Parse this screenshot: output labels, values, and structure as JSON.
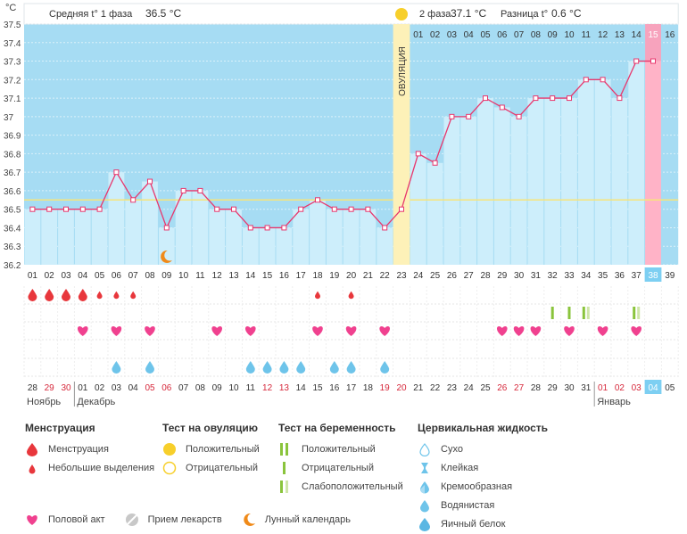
{
  "chart_data": {
    "type": "line",
    "unit_label": "°C",
    "ylim": [
      36.2,
      37.5
    ],
    "yticks": [
      "37.5",
      "37.4",
      "37.3",
      "37.2",
      "37.1",
      "37",
      "36.9",
      "36.8",
      "36.7",
      "36.6",
      "36.5",
      "36.4",
      "36.3",
      "36.2"
    ],
    "header": {
      "phase1_label": "Средняя t° 1 фаза",
      "phase1_value": "36.5 °C",
      "phase2_label": "2 фаза",
      "phase2_value": "37.1 °C",
      "diff_label": "Разница t°",
      "diff_value": "0.6 °C"
    },
    "ovulation_label": "ОВУЛЯЦИЯ",
    "ovulation_day": 23,
    "phase2_days": [
      "01",
      "02",
      "03",
      "04",
      "05",
      "06",
      "07",
      "08",
      "09",
      "10",
      "11",
      "12",
      "13",
      "14",
      "15",
      "16"
    ],
    "cycle_days": [
      "01",
      "02",
      "03",
      "04",
      "05",
      "06",
      "07",
      "08",
      "09",
      "10",
      "11",
      "12",
      "13",
      "14",
      "15",
      "16",
      "17",
      "18",
      "19",
      "20",
      "21",
      "22",
      "23",
      "24",
      "25",
      "26",
      "27",
      "28",
      "29",
      "30",
      "31",
      "32",
      "33",
      "34",
      "35",
      "36",
      "37",
      "38",
      "39"
    ],
    "today_day": 38,
    "temperatures": [
      36.5,
      36.5,
      36.5,
      36.5,
      36.5,
      36.7,
      36.55,
      36.65,
      36.4,
      36.6,
      36.6,
      36.5,
      36.5,
      36.4,
      36.4,
      36.4,
      36.5,
      36.55,
      36.5,
      36.5,
      36.5,
      36.4,
      36.5,
      36.8,
      36.75,
      37.0,
      37.0,
      37.1,
      37.05,
      37.0,
      37.1,
      37.1,
      37.1,
      37.2,
      37.2,
      37.1,
      37.3,
      37.3,
      null
    ],
    "coverline": 36.55,
    "dates": [
      "28",
      "29",
      "30",
      "01",
      "02",
      "03",
      "04",
      "05",
      "06",
      "07",
      "08",
      "09",
      "10",
      "11",
      "12",
      "13",
      "14",
      "15",
      "16",
      "17",
      "18",
      "19",
      "20",
      "21",
      "22",
      "23",
      "24",
      "25",
      "26",
      "27",
      "28",
      "29",
      "30",
      "31",
      "01",
      "02",
      "03",
      "04",
      "05"
    ],
    "red_dates": [
      2,
      3,
      8,
      9,
      15,
      16,
      22,
      23,
      29,
      30,
      35,
      36,
      37
    ],
    "highlight_date": 38,
    "month_labels": [
      "Ноябрь",
      "Декабрь",
      "Январь"
    ],
    "menstruation": {
      "1": "big",
      "2": "big",
      "3": "big",
      "4": "big",
      "5": "small",
      "6": "small",
      "7": "small",
      "18": "small",
      "20": "small"
    },
    "pregnancy_tests": {
      "32": "positive",
      "33": "positive",
      "34": "positive_weak",
      "37": "positive_weak"
    },
    "intercourse": [
      4,
      6,
      8,
      12,
      14,
      18,
      20,
      22,
      29,
      30,
      31,
      33,
      35,
      37
    ],
    "cervical_fluid": [
      6,
      8,
      14,
      15,
      16,
      17,
      19,
      20,
      22
    ],
    "moon_day": 9,
    "colors": {
      "bar": "#cdeefb",
      "plot_bg": "#a6dcf3",
      "ovulation": "#fdf1b8",
      "line": "#e8376d",
      "today": "#ffb3c7",
      "today_box": "#7dcff2",
      "blue_drop": "#6ec4ea",
      "pink": "#f0418f",
      "red": "#e8373c",
      "green": "#8ac43c",
      "moon": "#f08a19"
    }
  },
  "legend": {
    "menstruation": {
      "title": "Менструация",
      "items": [
        "Менструация",
        "Небольшие выделения"
      ]
    },
    "ovulation_test": {
      "title": "Тест на овуляцию",
      "items": [
        "Положительный",
        "Отрицательный"
      ]
    },
    "pregnancy_test": {
      "title": "Тест на беременность",
      "items": [
        "Положительный",
        "Отрицательный",
        "Слабоположительный"
      ]
    },
    "cervical": {
      "title": "Цервикальная жидкость",
      "items": [
        "Сухо",
        "Клейкая",
        "Кремообразная",
        "Водянистая",
        "Яичный белок"
      ]
    },
    "bottom": [
      "Половой акт",
      "Прием лекарств",
      "Лунный календарь"
    ]
  }
}
